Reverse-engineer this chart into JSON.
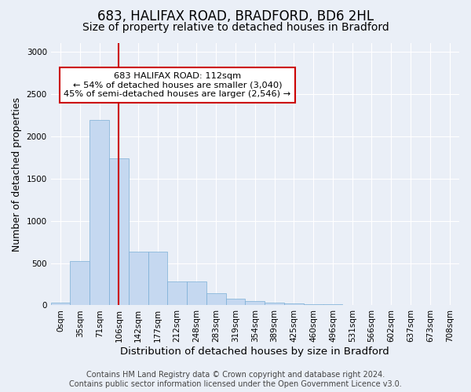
{
  "title1": "683, HALIFAX ROAD, BRADFORD, BD6 2HL",
  "title2": "Size of property relative to detached houses in Bradford",
  "xlabel": "Distribution of detached houses by size in Bradford",
  "ylabel": "Number of detached properties",
  "bar_labels": [
    "0sqm",
    "35sqm",
    "71sqm",
    "106sqm",
    "142sqm",
    "177sqm",
    "212sqm",
    "248sqm",
    "283sqm",
    "319sqm",
    "354sqm",
    "389sqm",
    "425sqm",
    "460sqm",
    "496sqm",
    "531sqm",
    "566sqm",
    "602sqm",
    "637sqm",
    "673sqm",
    "708sqm"
  ],
  "bar_heights": [
    30,
    520,
    2190,
    1740,
    630,
    630,
    280,
    280,
    140,
    75,
    50,
    35,
    20,
    15,
    10,
    5,
    5,
    5,
    5,
    2,
    1
  ],
  "bar_color": "#c5d8f0",
  "bar_edge_color": "#7aaed6",
  "vline_x": 3.0,
  "vline_color": "#cc0000",
  "annotation_text": "683 HALIFAX ROAD: 112sqm\n← 54% of detached houses are smaller (3,040)\n45% of semi-detached houses are larger (2,546) →",
  "annotation_box_color": "#ffffff",
  "annotation_box_edge": "#cc0000",
  "ylim": [
    0,
    3100
  ],
  "yticks": [
    0,
    500,
    1000,
    1500,
    2000,
    2500,
    3000
  ],
  "bg_color": "#eaeff7",
  "plot_bg_color": "#eaeff7",
  "footer_text": "Contains HM Land Registry data © Crown copyright and database right 2024.\nContains public sector information licensed under the Open Government Licence v3.0.",
  "title1_fontsize": 12,
  "title2_fontsize": 10,
  "xlabel_fontsize": 9.5,
  "ylabel_fontsize": 9,
  "tick_fontsize": 7.5,
  "footer_fontsize": 7
}
